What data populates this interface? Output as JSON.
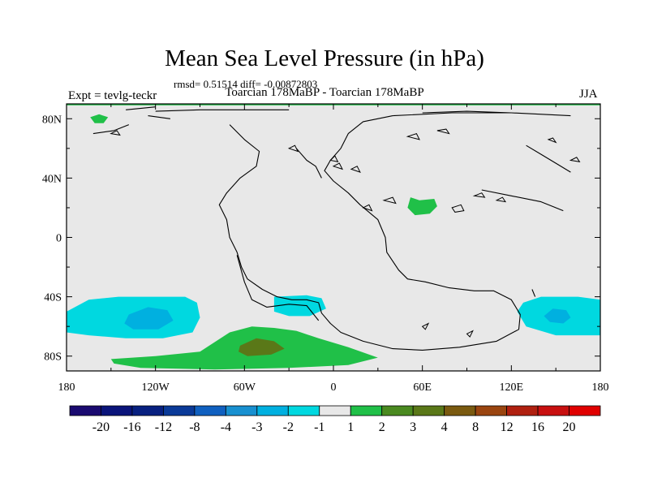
{
  "chart_data": {
    "type": "heatmap",
    "title": "Mean Sea Level Pressure (in hPa)",
    "stats": "rmsd= 0.51514 diff= -0.00872803",
    "experiment": "Expt = tevlg-teckr",
    "subtitle": "Toarcian 178MaBP - Toarcian 178MaBP",
    "season": "JJA",
    "xlim": [
      -180,
      180
    ],
    "ylim": [
      -90,
      90
    ],
    "x_ticks": [
      {
        "value": -180,
        "label": "180"
      },
      {
        "value": -120,
        "label": "120W"
      },
      {
        "value": -60,
        "label": "60W"
      },
      {
        "value": 0,
        "label": "0"
      },
      {
        "value": 60,
        "label": "60E"
      },
      {
        "value": 120,
        "label": "120E"
      },
      {
        "value": 180,
        "label": "180"
      }
    ],
    "y_ticks": [
      {
        "value": 80,
        "label": "80N"
      },
      {
        "value": 40,
        "label": "40N"
      },
      {
        "value": 0,
        "label": "0"
      },
      {
        "value": -40,
        "label": "40S"
      },
      {
        "value": -80,
        "label": "80S"
      }
    ],
    "background_color": "#e8e8e8",
    "regions": [
      {
        "name": "southwest-pacific-low",
        "color": "#00d8e0",
        "points": [
          [
            -180,
            -50
          ],
          [
            -165,
            -42
          ],
          [
            -145,
            -40
          ],
          [
            -120,
            -40
          ],
          [
            -100,
            -40
          ],
          [
            -92,
            -44
          ],
          [
            -90,
            -54
          ],
          [
            -95,
            -64
          ],
          [
            -115,
            -68
          ],
          [
            -140,
            -68
          ],
          [
            -165,
            -66
          ],
          [
            -180,
            -64
          ]
        ]
      },
      {
        "name": "southwest-pacific-low-core",
        "color": "#00b0e0",
        "points": [
          [
            -138,
            -52
          ],
          [
            -125,
            -47
          ],
          [
            -112,
            -49
          ],
          [
            -108,
            -56
          ],
          [
            -118,
            -62
          ],
          [
            -135,
            -62
          ],
          [
            -141,
            -58
          ]
        ]
      },
      {
        "name": "south-america-low",
        "color": "#00d8e0",
        "points": [
          [
            -40,
            -40
          ],
          [
            -18,
            -39
          ],
          [
            -8,
            -41
          ],
          [
            -5,
            -48
          ],
          [
            -16,
            -53
          ],
          [
            -30,
            -53
          ],
          [
            -40,
            -50
          ]
        ]
      },
      {
        "name": "southeast-indian-low",
        "color": "#00d8e0",
        "points": [
          [
            180,
            -42
          ],
          [
            165,
            -40
          ],
          [
            140,
            -40
          ],
          [
            128,
            -44
          ],
          [
            124,
            -50
          ],
          [
            130,
            -60
          ],
          [
            150,
            -66
          ],
          [
            180,
            -66
          ]
        ]
      },
      {
        "name": "southeast-indian-low-core",
        "color": "#00b0e0",
        "points": [
          [
            148,
            -48
          ],
          [
            157,
            -49
          ],
          [
            160,
            -54
          ],
          [
            155,
            -58
          ],
          [
            146,
            -57
          ],
          [
            142,
            -53
          ]
        ]
      },
      {
        "name": "southern-ocean-high",
        "color": "#20c048",
        "points": [
          [
            -150,
            -82
          ],
          [
            -120,
            -80
          ],
          [
            -90,
            -77
          ],
          [
            -70,
            -64
          ],
          [
            -55,
            -60
          ],
          [
            -40,
            -61
          ],
          [
            -25,
            -63
          ],
          [
            -10,
            -68
          ],
          [
            10,
            -74
          ],
          [
            30,
            -81
          ],
          [
            10,
            -86
          ],
          [
            -30,
            -88
          ],
          [
            -80,
            -89
          ],
          [
            -130,
            -88
          ],
          [
            -148,
            -85
          ]
        ]
      },
      {
        "name": "southern-ocean-high-core",
        "color": "#5a7818",
        "points": [
          [
            -63,
            -73
          ],
          [
            -52,
            -68
          ],
          [
            -40,
            -70
          ],
          [
            -33,
            -75
          ],
          [
            -42,
            -79
          ],
          [
            -58,
            -80
          ],
          [
            -64,
            -77
          ]
        ]
      },
      {
        "name": "arctic-strip-high",
        "color": "#20c048",
        "points": [
          [
            -180,
            90
          ],
          [
            180,
            90
          ],
          [
            180,
            89
          ],
          [
            -180,
            89
          ]
        ]
      },
      {
        "name": "north-atlantic-high-patch",
        "color": "#20c048",
        "points": [
          [
            -164,
            81
          ],
          [
            -158,
            83
          ],
          [
            -152,
            81
          ],
          [
            -155,
            77
          ],
          [
            -161,
            77
          ]
        ]
      },
      {
        "name": "central-tethys-high",
        "color": "#20c048",
        "points": [
          [
            52,
            27
          ],
          [
            58,
            25
          ],
          [
            68,
            26
          ],
          [
            70,
            21
          ],
          [
            65,
            16
          ],
          [
            55,
            15
          ],
          [
            50,
            20
          ]
        ]
      }
    ],
    "colorbar": {
      "labels": [
        "-20",
        "-16",
        "-12",
        "-8",
        "-4",
        "-3",
        "-2",
        "-1",
        "1",
        "2",
        "3",
        "4",
        "8",
        "12",
        "16",
        "20"
      ],
      "colors": [
        "#1a0a70",
        "#0a147a",
        "#082080",
        "#0a3a98",
        "#1060c0",
        "#1890d0",
        "#00b0e0",
        "#00d8e0",
        "#e8e8e8",
        "#20c048",
        "#4a8a20",
        "#5a7818",
        "#7a5a10",
        "#9a4510",
        "#b02010",
        "#c81010",
        "#e00000"
      ]
    },
    "coastlines": [
      [
        [
          -70,
          76
        ],
        [
          -60,
          66
        ],
        [
          -50,
          58
        ],
        [
          -52,
          48
        ],
        [
          -63,
          40
        ],
        [
          -72,
          30
        ],
        [
          -77,
          22
        ],
        [
          -72,
          12
        ],
        [
          -70,
          0
        ],
        [
          -65,
          -10
        ],
        [
          -62,
          -20
        ],
        [
          -58,
          -28
        ],
        [
          -48,
          -35
        ],
        [
          -38,
          -40
        ],
        [
          -28,
          -42
        ],
        [
          -18,
          -42
        ],
        [
          -10,
          -44
        ],
        [
          -8,
          -51
        ],
        [
          -2,
          -58
        ],
        [
          5,
          -64
        ],
        [
          20,
          -70
        ],
        [
          40,
          -75
        ],
        [
          60,
          -76
        ],
        [
          85,
          -74
        ],
        [
          110,
          -70
        ],
        [
          125,
          -62
        ],
        [
          126,
          -52
        ],
        [
          120,
          -42
        ],
        [
          108,
          -36
        ],
        [
          95,
          -36
        ],
        [
          78,
          -34
        ],
        [
          62,
          -30
        ],
        [
          50,
          -28
        ],
        [
          44,
          -22
        ],
        [
          36,
          -10
        ],
        [
          35,
          0
        ],
        [
          30,
          12
        ],
        [
          18,
          22
        ],
        [
          10,
          30
        ],
        [
          0,
          38
        ],
        [
          -6,
          45
        ],
        [
          -2,
          52
        ],
        [
          5,
          60
        ],
        [
          10,
          70
        ],
        [
          20,
          78
        ],
        [
          40,
          82
        ]
      ],
      [
        [
          -25,
          60
        ],
        [
          -18,
          52
        ],
        [
          -12,
          48
        ],
        [
          -8,
          40
        ]
      ],
      [
        [
          -65,
          -12
        ],
        [
          -60,
          -30
        ],
        [
          -55,
          -42
        ],
        [
          -45,
          -47
        ],
        [
          -30,
          -45
        ],
        [
          -18,
          -46
        ],
        [
          -10,
          -56
        ]
      ],
      [
        [
          -120,
          85
        ],
        [
          -90,
          86
        ],
        [
          -60,
          86
        ],
        [
          -30,
          86
        ]
      ],
      [
        [
          40,
          82
        ],
        [
          80,
          84
        ],
        [
          120,
          84
        ],
        [
          160,
          82
        ]
      ],
      [
        [
          -162,
          70
        ],
        [
          -148,
          72
        ],
        [
          -138,
          76
        ]
      ],
      [
        [
          -125,
          82
        ],
        [
          -110,
          80
        ]
      ],
      [
        [
          60,
          84
        ],
        [
          90,
          85
        ],
        [
          120,
          84
        ]
      ],
      [
        [
          100,
          32
        ],
        [
          120,
          28
        ],
        [
          140,
          24
        ],
        [
          155,
          18
        ]
      ],
      [
        [
          130,
          62
        ],
        [
          140,
          56
        ],
        [
          150,
          50
        ],
        [
          160,
          44
        ]
      ],
      [
        [
          134,
          -35
        ],
        [
          136,
          -40
        ]
      ],
      [
        [
          -120,
          88
        ],
        [
          -140,
          86
        ]
      ]
    ],
    "islands": [
      [
        [
          80,
          20
        ],
        [
          86,
          22
        ],
        [
          88,
          18
        ],
        [
          82,
          17
        ]
      ],
      [
        [
          95,
          28
        ],
        [
          100,
          30
        ],
        [
          102,
          27
        ]
      ],
      [
        [
          110,
          25
        ],
        [
          114,
          27
        ],
        [
          116,
          24
        ]
      ],
      [
        [
          34,
          25
        ],
        [
          40,
          27
        ],
        [
          42,
          23
        ]
      ],
      [
        [
          60,
          -60
        ],
        [
          64,
          -58
        ],
        [
          62,
          -62
        ]
      ],
      [
        [
          90,
          -65
        ],
        [
          94,
          -63
        ],
        [
          92,
          -67
        ]
      ],
      [
        [
          -150,
          70
        ],
        [
          -146,
          72
        ],
        [
          -144,
          69
        ]
      ],
      [
        [
          -30,
          60
        ],
        [
          -26,
          62
        ],
        [
          -24,
          58
        ]
      ],
      [
        [
          50,
          68
        ],
        [
          56,
          70
        ],
        [
          58,
          66
        ]
      ],
      [
        [
          12,
          46
        ],
        [
          16,
          48
        ],
        [
          18,
          44
        ]
      ],
      [
        [
          0,
          48
        ],
        [
          4,
          50
        ],
        [
          6,
          46
        ]
      ],
      [
        [
          -2,
          52
        ],
        [
          1,
          55
        ],
        [
          3,
          51
        ]
      ],
      [
        [
          70,
          72
        ],
        [
          76,
          73
        ],
        [
          78,
          70
        ]
      ],
      [
        [
          145,
          66
        ],
        [
          148,
          67
        ],
        [
          150,
          64
        ]
      ],
      [
        [
          160,
          52
        ],
        [
          164,
          54
        ],
        [
          166,
          51
        ]
      ],
      [
        [
          20,
          20
        ],
        [
          24,
          22
        ],
        [
          26,
          18
        ]
      ]
    ]
  }
}
